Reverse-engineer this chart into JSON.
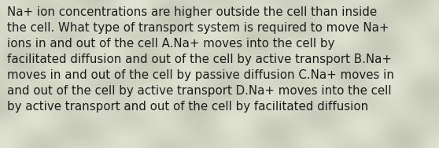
{
  "text": "Na+ ion concentrations are higher outside the cell than inside\nthe cell. What type of transport system is required to move Na+\nions in and out of the cell A.Na+ moves into the cell by\nfacilitated diffusion and out of the cell by active transport B.Na+\nmoves in and out of the cell by passive diffusion C.Na+ moves in\nand out of the cell by active transport D.Na+ moves into the cell\nby active transport and out of the cell by facilitated diffusion",
  "background_base": "#d4d6c5",
  "text_color": "#1c1c1c",
  "font_size": 10.8,
  "fig_width": 5.58,
  "fig_height": 1.88,
  "dpi": 100
}
